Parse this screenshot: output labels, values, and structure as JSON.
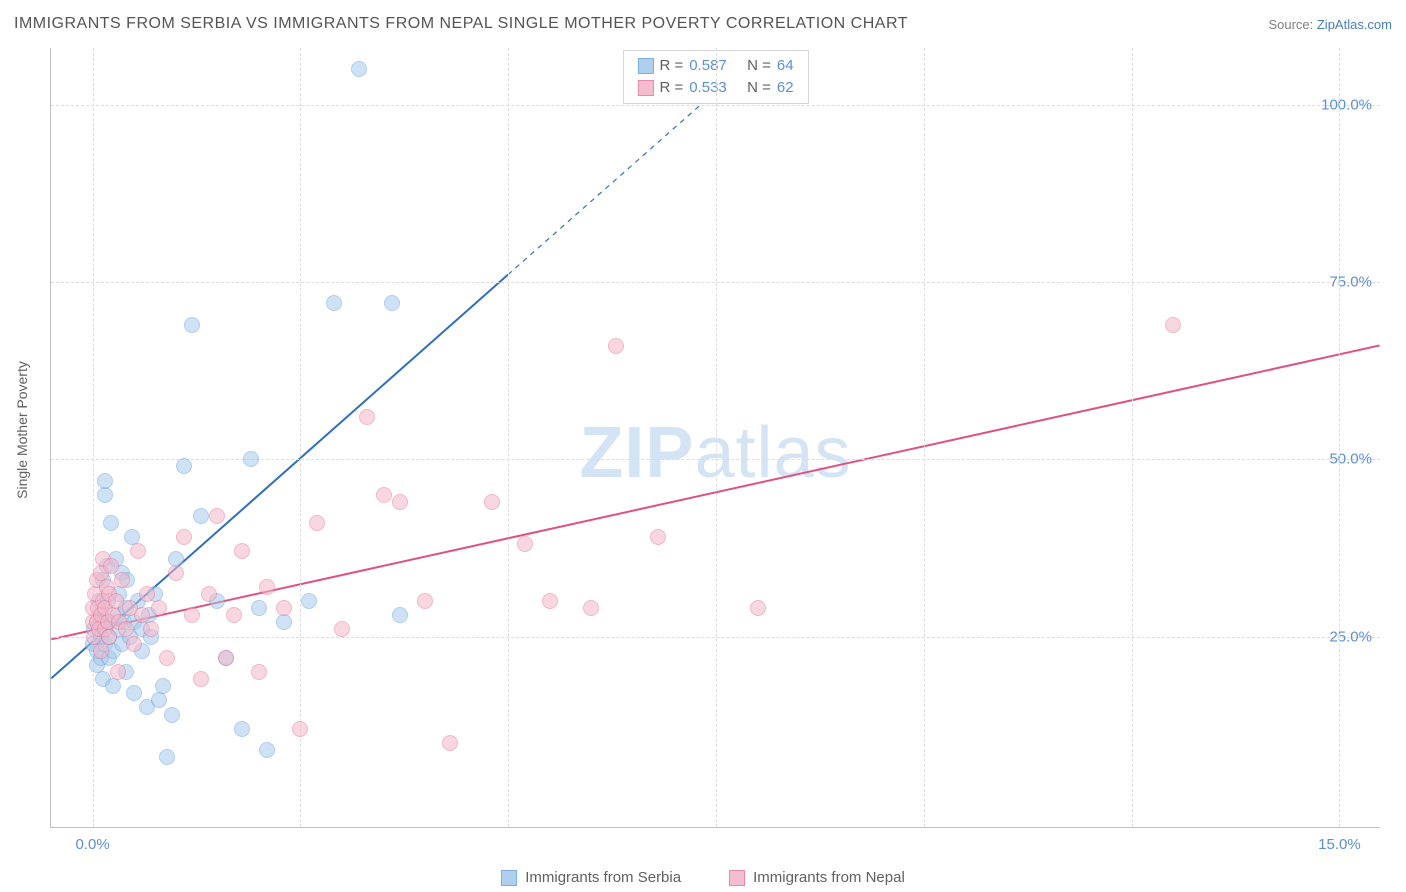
{
  "title": "IMMIGRANTS FROM SERBIA VS IMMIGRANTS FROM NEPAL SINGLE MOTHER POVERTY CORRELATION CHART",
  "source_label": "Source: ",
  "source_link": "ZipAtlas.com",
  "ylabel": "Single Mother Poverty",
  "watermark_bold": "ZIP",
  "watermark_light": "atlas",
  "chart": {
    "type": "scatter",
    "background_color": "#ffffff",
    "grid_color": "#dcdcdc",
    "axis_color": "#c0c0c0",
    "tick_label_color": "#5b8fd6",
    "xlim": [
      -0.5,
      15.5
    ],
    "ylim": [
      -2,
      108
    ],
    "xticks": [
      {
        "v": 0,
        "label": "0.0%"
      },
      {
        "v": 15,
        "label": "15.0%"
      }
    ],
    "xgrid": [
      0,
      2.5,
      5,
      7.5,
      10,
      12.5,
      15
    ],
    "yticks": [
      {
        "v": 25,
        "label": "25.0%"
      },
      {
        "v": 50,
        "label": "50.0%"
      },
      {
        "v": 75,
        "label": "75.0%"
      },
      {
        "v": 100,
        "label": "100.0%"
      }
    ],
    "marker_radius": 8,
    "label_fontsize": 14
  },
  "series": {
    "a": {
      "name": "Immigrants from Serbia",
      "fill": "#a8c9ec",
      "stroke": "#6fa7de",
      "fill_opacity": 0.55,
      "R": "0.587",
      "N": "64",
      "trend": {
        "x1": -0.5,
        "y1": 19,
        "x2": 5.0,
        "y2": 76,
        "x2_dash": 8.0,
        "y2_dash": 107
      },
      "line_color": "#2f6fc0",
      "line_width": 2,
      "points": [
        [
          0.0,
          24
        ],
        [
          0.02,
          26
        ],
        [
          0.05,
          21
        ],
        [
          0.05,
          23
        ],
        [
          0.05,
          27
        ],
        [
          0.08,
          30
        ],
        [
          0.1,
          22
        ],
        [
          0.1,
          25
        ],
        [
          0.1,
          28
        ],
        [
          0.12,
          33
        ],
        [
          0.13,
          19
        ],
        [
          0.15,
          24
        ],
        [
          0.15,
          27
        ],
        [
          0.15,
          45
        ],
        [
          0.15,
          47
        ],
        [
          0.17,
          35
        ],
        [
          0.18,
          30
        ],
        [
          0.2,
          22
        ],
        [
          0.2,
          25
        ],
        [
          0.2,
          27
        ],
        [
          0.22,
          41
        ],
        [
          0.25,
          18
        ],
        [
          0.25,
          23
        ],
        [
          0.28,
          36
        ],
        [
          0.3,
          26
        ],
        [
          0.3,
          28
        ],
        [
          0.32,
          31
        ],
        [
          0.35,
          24
        ],
        [
          0.35,
          34
        ],
        [
          0.38,
          27
        ],
        [
          0.4,
          20
        ],
        [
          0.4,
          29
        ],
        [
          0.42,
          33
        ],
        [
          0.45,
          25
        ],
        [
          0.48,
          39
        ],
        [
          0.5,
          17
        ],
        [
          0.5,
          27
        ],
        [
          0.55,
          30
        ],
        [
          0.6,
          23
        ],
        [
          0.6,
          26
        ],
        [
          0.65,
          15
        ],
        [
          0.68,
          28
        ],
        [
          0.7,
          25
        ],
        [
          0.75,
          31
        ],
        [
          0.8,
          16
        ],
        [
          0.85,
          18
        ],
        [
          0.9,
          8
        ],
        [
          0.95,
          14
        ],
        [
          1.0,
          36
        ],
        [
          1.1,
          49
        ],
        [
          1.2,
          69
        ],
        [
          1.3,
          42
        ],
        [
          1.5,
          30
        ],
        [
          1.6,
          22
        ],
        [
          1.8,
          12
        ],
        [
          1.9,
          50
        ],
        [
          2.0,
          29
        ],
        [
          2.1,
          9
        ],
        [
          2.3,
          27
        ],
        [
          2.6,
          30
        ],
        [
          2.9,
          72
        ],
        [
          3.2,
          105
        ],
        [
          3.6,
          72
        ],
        [
          3.7,
          28
        ]
      ]
    },
    "b": {
      "name": "Immigrants from Nepal",
      "fill": "#f4b8c9",
      "stroke": "#e77ea0",
      "fill_opacity": 0.55,
      "R": "0.533",
      "N": "62",
      "trend": {
        "x1": -0.5,
        "y1": 24.5,
        "x2": 15.5,
        "y2": 66
      },
      "line_color": "#e0517f",
      "line_width": 2,
      "points": [
        [
          0.0,
          27
        ],
        [
          0.0,
          29
        ],
        [
          0.02,
          25
        ],
        [
          0.03,
          31
        ],
        [
          0.05,
          27
        ],
        [
          0.05,
          33
        ],
        [
          0.07,
          29
        ],
        [
          0.08,
          26
        ],
        [
          0.1,
          23
        ],
        [
          0.1,
          28
        ],
        [
          0.1,
          34
        ],
        [
          0.12,
          30
        ],
        [
          0.13,
          36
        ],
        [
          0.15,
          26
        ],
        [
          0.15,
          29
        ],
        [
          0.17,
          32
        ],
        [
          0.18,
          27
        ],
        [
          0.2,
          25
        ],
        [
          0.2,
          31
        ],
        [
          0.22,
          35
        ],
        [
          0.25,
          28
        ],
        [
          0.28,
          30
        ],
        [
          0.3,
          20
        ],
        [
          0.32,
          27
        ],
        [
          0.35,
          33
        ],
        [
          0.4,
          26
        ],
        [
          0.45,
          29
        ],
        [
          0.5,
          24
        ],
        [
          0.55,
          37
        ],
        [
          0.6,
          28
        ],
        [
          0.65,
          31
        ],
        [
          0.7,
          26
        ],
        [
          0.8,
          29
        ],
        [
          0.9,
          22
        ],
        [
          1.0,
          34
        ],
        [
          1.1,
          39
        ],
        [
          1.2,
          28
        ],
        [
          1.3,
          19
        ],
        [
          1.4,
          31
        ],
        [
          1.5,
          42
        ],
        [
          1.6,
          22
        ],
        [
          1.7,
          28
        ],
        [
          1.8,
          37
        ],
        [
          2.0,
          20
        ],
        [
          2.1,
          32
        ],
        [
          2.3,
          29
        ],
        [
          2.5,
          12
        ],
        [
          2.7,
          41
        ],
        [
          3.0,
          26
        ],
        [
          3.3,
          56
        ],
        [
          3.5,
          45
        ],
        [
          3.7,
          44
        ],
        [
          4.0,
          30
        ],
        [
          4.3,
          10
        ],
        [
          4.8,
          44
        ],
        [
          5.2,
          38
        ],
        [
          5.5,
          30
        ],
        [
          6.3,
          66
        ],
        [
          6.8,
          39
        ],
        [
          8.0,
          29
        ],
        [
          13.0,
          69
        ],
        [
          6.0,
          29
        ]
      ]
    }
  },
  "stats_legend": {
    "R_label": "R =",
    "N_label": "N ="
  }
}
